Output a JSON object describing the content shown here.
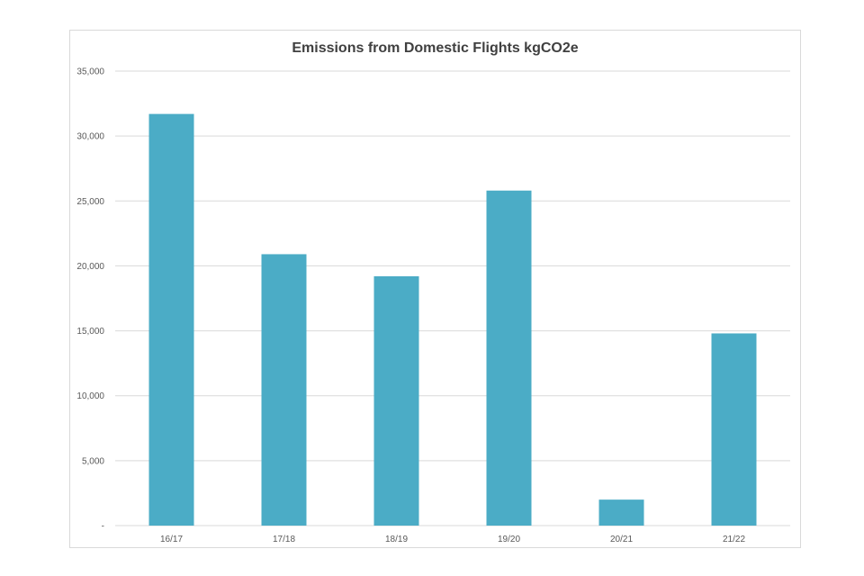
{
  "chart_data": {
    "type": "bar",
    "title": "Emissions from Domestic Flights kgCO2e",
    "xlabel": "",
    "ylabel": "",
    "categories": [
      "16/17",
      "17/18",
      "18/19",
      "19/20",
      "20/21",
      "21/22"
    ],
    "values": [
      31700,
      20900,
      19200,
      25800,
      2000,
      14800
    ],
    "ylim": [
      0,
      35000
    ],
    "yticks": [
      0,
      5000,
      10000,
      15000,
      20000,
      25000,
      30000,
      35000
    ],
    "ytick_labels": [
      "-",
      "5,000",
      "10,000",
      "15,000",
      "20,000",
      "25,000",
      "30,000",
      "35,000"
    ],
    "grid": true,
    "legend": "none",
    "bar_color": "#4BACC6",
    "grid_color": "#D9D9D9"
  }
}
